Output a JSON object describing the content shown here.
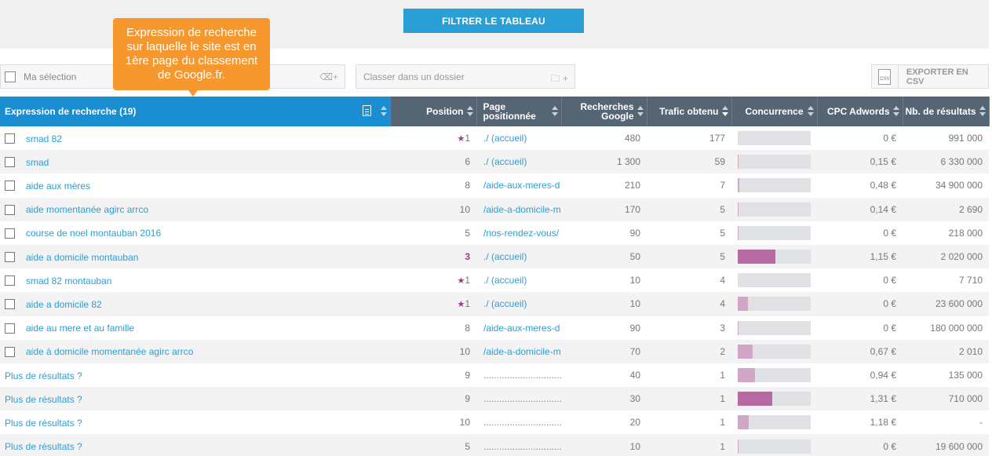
{
  "filter_button": "FILTRER LE TABLEAU",
  "tooltip": "Expression de recherche sur laquelle le site est en 1ère page du classement de Google.fr.",
  "toolbar": {
    "selection_label": "Ma sélection",
    "folder_placeholder": "Classer dans un dossier",
    "export_label": "EXPORTER EN CSV",
    "csv_icon_text": "CSV"
  },
  "headers": {
    "keyword": "Expression de recherche (19)",
    "position": "Position",
    "page": "Page positionnée",
    "searches": "Recherches Google",
    "traffic": "Trafic obtenu",
    "competition": "Concurrence",
    "cpc": "CPC Adwords",
    "results": "Nb. de résultats"
  },
  "rows": [
    {
      "keyword": "smad 82",
      "checkbox": true,
      "star": true,
      "position": "1",
      "page": "./ (accueil)",
      "searches": "480",
      "traffic": "177",
      "competition": 0,
      "cpc": "0 €",
      "results": "991 000"
    },
    {
      "keyword": "smad",
      "checkbox": true,
      "star": false,
      "position": "6",
      "page": "./ (accueil)",
      "searches": "1 300",
      "traffic": "59",
      "competition": 0.01,
      "cpc": "0,15 €",
      "results": "6 330 000"
    },
    {
      "keyword": "aide aux mères",
      "checkbox": true,
      "star": false,
      "position": "8",
      "page": "/aide-aux-meres-d",
      "searches": "210",
      "traffic": "7",
      "competition": 0.02,
      "cpc": "0,48 €",
      "results": "34 900 000"
    },
    {
      "keyword": "aide momentanée agirc arrco",
      "checkbox": true,
      "star": false,
      "position": "10",
      "page": "/aide-a-domicile-m",
      "searches": "170",
      "traffic": "5",
      "competition": 0.01,
      "cpc": "0,14 €",
      "results": "2 690"
    },
    {
      "keyword": "course de noel montauban 2016",
      "checkbox": true,
      "star": false,
      "position": "5",
      "page": "/nos-rendez-vous/",
      "searches": "90",
      "traffic": "5",
      "competition": 0.01,
      "cpc": "0 €",
      "results": "218 000"
    },
    {
      "keyword": "aide a domicile montauban",
      "checkbox": true,
      "star": false,
      "highlight": true,
      "position": "3",
      "page": "./ (accueil)",
      "searches": "50",
      "traffic": "5",
      "competition": 0.52,
      "cpc": "1,15 €",
      "results": "2 020 000"
    },
    {
      "keyword": "smad 82 montauban",
      "checkbox": true,
      "star": true,
      "position": "1",
      "page": "./ (accueil)",
      "searches": "10",
      "traffic": "4",
      "competition": 0,
      "cpc": "0 €",
      "results": "7 710"
    },
    {
      "keyword": "aide a domicile 82",
      "checkbox": true,
      "star": true,
      "position": "1",
      "page": "./ (accueil)",
      "searches": "10",
      "traffic": "4",
      "competition": 0.14,
      "cpc": "0 €",
      "results": "23 600 000"
    },
    {
      "keyword": "aide au mere et au famille",
      "checkbox": true,
      "star": false,
      "position": "8",
      "page": "/aide-aux-meres-d",
      "searches": "90",
      "traffic": "3",
      "competition": 0.01,
      "cpc": "0 €",
      "results": "180 000 000"
    },
    {
      "keyword": "aide à domicile momentanée agirc arrco",
      "checkbox": true,
      "star": false,
      "position": "10",
      "page": "/aide-a-domicile-m",
      "searches": "70",
      "traffic": "2",
      "competition": 0.2,
      "cpc": "0,67 €",
      "results": "2 010"
    },
    {
      "keyword": "Plus de résultats ?",
      "checkbox": false,
      "star": false,
      "position": "9",
      "page": "....................................",
      "dots": true,
      "searches": "40",
      "traffic": "1",
      "competition": 0.24,
      "cpc": "0,94 €",
      "results": "135 000"
    },
    {
      "keyword": "Plus de résultats ?",
      "checkbox": false,
      "star": false,
      "position": "9",
      "page": "....................................",
      "dots": true,
      "searches": "30",
      "traffic": "1",
      "competition": 0.47,
      "cpc": "1,31 €",
      "results": "710 000"
    },
    {
      "keyword": "Plus de résultats ?",
      "checkbox": false,
      "star": false,
      "position": "10",
      "page": "....................................",
      "dots": true,
      "searches": "20",
      "traffic": "1",
      "competition": 0.15,
      "cpc": "1,18 €",
      "results": "-"
    },
    {
      "keyword": "Plus de résultats ?",
      "checkbox": false,
      "star": false,
      "position": "5",
      "page": "....................................",
      "dots": true,
      "searches": "10",
      "traffic": "1",
      "competition": 0.01,
      "cpc": "0 €",
      "results": "19 600 000"
    }
  ]
}
